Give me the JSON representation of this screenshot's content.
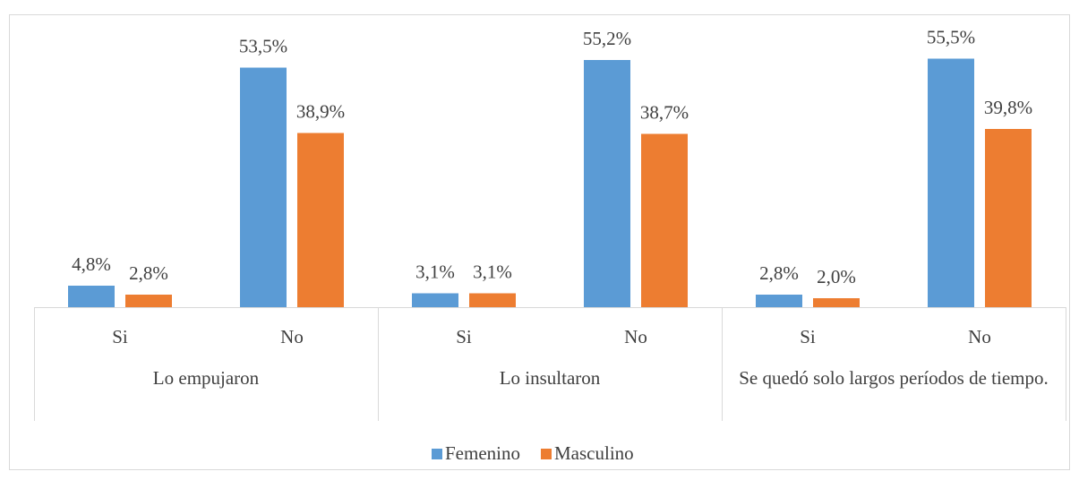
{
  "chart_data": {
    "type": "bar",
    "categories": [
      "Si",
      "No",
      "Si",
      "No",
      "Si",
      "No"
    ],
    "groups": [
      "Lo empujaron",
      "Lo insultaron",
      "Se quedó solo largos períodos de tiempo."
    ],
    "series": [
      {
        "name": "Femenino",
        "color": "#5b9bd5",
        "values": [
          4.8,
          53.5,
          3.1,
          55.2,
          2.8,
          55.5
        ],
        "value_labels": [
          "4,8%",
          "53,5%",
          "3,1%",
          "55,2%",
          "2,8%",
          "55,5%"
        ]
      },
      {
        "name": "Masculino",
        "color": "#ed7d31",
        "values": [
          2.8,
          38.9,
          3.1,
          38.7,
          2.0,
          39.8
        ],
        "value_labels": [
          "2,8%",
          "38,9%",
          "3,1%",
          "38,7%",
          "2,0%",
          "39,8%"
        ]
      }
    ],
    "ylim": [
      0,
      60
    ],
    "legend": "bottom"
  }
}
